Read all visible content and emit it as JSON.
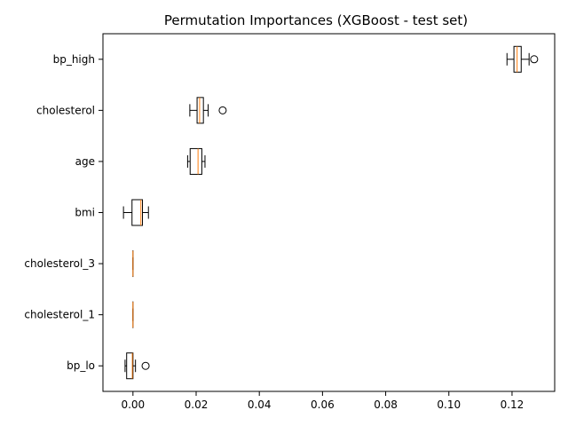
{
  "chart_data": {
    "type": "boxplot",
    "orientation": "horizontal",
    "title": "Permutation Importances (XGBoost - test set)",
    "xlabel": "",
    "ylabel": "",
    "xlim": [
      -0.0095,
      0.1335
    ],
    "xticks": [
      0.0,
      0.02,
      0.04,
      0.06,
      0.08,
      0.1,
      0.12
    ],
    "xtick_labels": [
      "0.00",
      "0.02",
      "0.04",
      "0.06",
      "0.08",
      "0.10",
      "0.12"
    ],
    "grid": false,
    "legend": "none",
    "colors": {
      "box_edge": "#000000",
      "median": "#ff7f0e",
      "outlier": "#000000"
    },
    "categories": [
      "bp_high",
      "cholesterol",
      "age",
      "bmi",
      "cholesterol_3",
      "cholesterol_1",
      "bp_lo"
    ],
    "boxes": [
      {
        "label": "bp_high",
        "whisker_low": 0.1184,
        "q1": 0.1206,
        "median": 0.1216,
        "q3": 0.1229,
        "whisker_high": 0.1254,
        "outliers": [
          0.127
        ]
      },
      {
        "label": "cholesterol",
        "whisker_low": 0.018,
        "q1": 0.0203,
        "median": 0.0211,
        "q3": 0.0223,
        "whisker_high": 0.0238,
        "outliers": [
          0.0284
        ]
      },
      {
        "label": "age",
        "whisker_low": 0.0173,
        "q1": 0.0181,
        "median": 0.0206,
        "q3": 0.0218,
        "whisker_high": 0.0228,
        "outliers": []
      },
      {
        "label": "bmi",
        "whisker_low": -0.003,
        "q1": -0.0003,
        "median": 0.0025,
        "q3": 0.003,
        "whisker_high": 0.0049,
        "outliers": []
      },
      {
        "label": "cholesterol_3",
        "whisker_low": 0.0,
        "q1": 0.0,
        "median": 0.0,
        "q3": 0.0,
        "whisker_high": 0.0,
        "outliers": []
      },
      {
        "label": "cholesterol_1",
        "whisker_low": 0.0,
        "q1": 0.0,
        "median": 0.0,
        "q3": 0.0,
        "whisker_high": 0.0,
        "outliers": []
      },
      {
        "label": "bp_lo",
        "whisker_low": -0.0025,
        "q1": -0.002,
        "median": -0.0002,
        "q3": 0.0,
        "whisker_high": 0.0008,
        "outliers": [
          0.004
        ]
      }
    ]
  }
}
